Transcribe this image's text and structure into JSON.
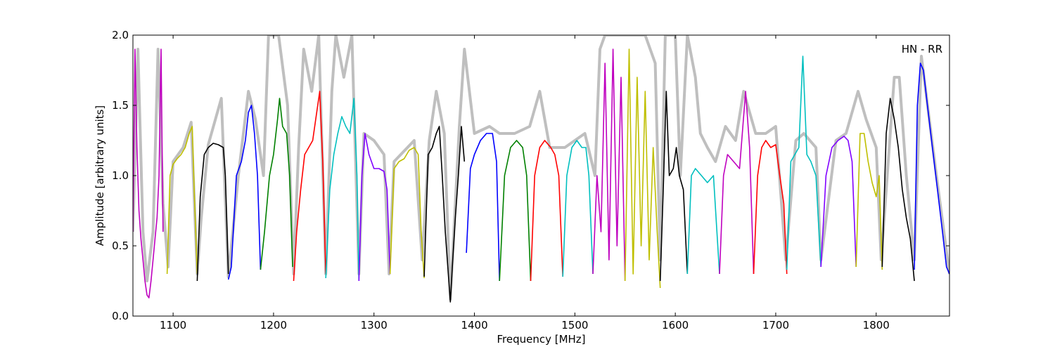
{
  "chart_data": {
    "type": "line",
    "title": "",
    "annotation": "HN - RR",
    "xlabel": "Frequency [MHz]",
    "ylabel": "Amplitude [arbitrary units]",
    "xlim": [
      1060,
      1873
    ],
    "ylim": [
      0.0,
      2.0
    ],
    "x_ticks": [
      1100,
      1200,
      1300,
      1400,
      1500,
      1600,
      1700,
      1800
    ],
    "y_ticks": [
      0.0,
      0.5,
      1.0,
      1.5,
      2.0
    ],
    "y_tick_labels": [
      "0.0",
      "0.5",
      "1.0",
      "1.5",
      "2.0"
    ],
    "grid": false,
    "legend": "none",
    "background_color": "#bfbfbf",
    "background_envelope": [
      [
        1060,
        0.6
      ],
      [
        1065,
        1.9
      ],
      [
        1070,
        0.6
      ],
      [
        1074,
        0.25
      ],
      [
        1080,
        0.6
      ],
      [
        1085,
        1.9
      ],
      [
        1090,
        0.8
      ],
      [
        1095,
        0.35
      ],
      [
        1100,
        1.1
      ],
      [
        1110,
        1.2
      ],
      [
        1118,
        1.38
      ],
      [
        1124,
        0.3
      ],
      [
        1128,
        0.7
      ],
      [
        1135,
        1.22
      ],
      [
        1148,
        1.55
      ],
      [
        1155,
        0.28
      ],
      [
        1165,
        1.0
      ],
      [
        1175,
        1.6
      ],
      [
        1182,
        1.4
      ],
      [
        1190,
        1.0
      ],
      [
        1195,
        2.0
      ],
      [
        1205,
        2.0
      ],
      [
        1214,
        1.5
      ],
      [
        1220,
        0.3
      ],
      [
        1225,
        1.2
      ],
      [
        1230,
        1.9
      ],
      [
        1238,
        1.6
      ],
      [
        1245,
        2.0
      ],
      [
        1252,
        0.3
      ],
      [
        1258,
        1.6
      ],
      [
        1262,
        2.0
      ],
      [
        1270,
        1.7
      ],
      [
        1278,
        2.0
      ],
      [
        1285,
        0.3
      ],
      [
        1290,
        1.3
      ],
      [
        1300,
        1.25
      ],
      [
        1310,
        1.15
      ],
      [
        1315,
        0.3
      ],
      [
        1320,
        1.1
      ],
      [
        1340,
        1.25
      ],
      [
        1348,
        0.4
      ],
      [
        1355,
        1.25
      ],
      [
        1362,
        1.6
      ],
      [
        1370,
        1.3
      ],
      [
        1376,
        0.12
      ],
      [
        1385,
        1.35
      ],
      [
        1390,
        1.9
      ],
      [
        1400,
        1.3
      ],
      [
        1415,
        1.35
      ],
      [
        1425,
        1.3
      ],
      [
        1440,
        1.3
      ],
      [
        1455,
        1.35
      ],
      [
        1465,
        1.6
      ],
      [
        1475,
        1.2
      ],
      [
        1490,
        1.2
      ],
      [
        1500,
        1.25
      ],
      [
        1510,
        1.3
      ],
      [
        1520,
        1.0
      ],
      [
        1525,
        1.9
      ],
      [
        1530,
        2.0
      ],
      [
        1540,
        2.0
      ],
      [
        1550,
        2.0
      ],
      [
        1560,
        2.0
      ],
      [
        1570,
        2.0
      ],
      [
        1580,
        1.8
      ],
      [
        1585,
        0.4
      ],
      [
        1590,
        2.0
      ],
      [
        1600,
        2.0
      ],
      [
        1605,
        1.0
      ],
      [
        1612,
        2.0
      ],
      [
        1620,
        1.7
      ],
      [
        1625,
        1.3
      ],
      [
        1632,
        1.2
      ],
      [
        1640,
        1.1
      ],
      [
        1650,
        1.35
      ],
      [
        1660,
        1.25
      ],
      [
        1668,
        1.6
      ],
      [
        1680,
        1.3
      ],
      [
        1690,
        1.3
      ],
      [
        1700,
        1.35
      ],
      [
        1710,
        0.4
      ],
      [
        1720,
        1.25
      ],
      [
        1728,
        1.3
      ],
      [
        1740,
        1.2
      ],
      [
        1745,
        0.4
      ],
      [
        1760,
        1.25
      ],
      [
        1770,
        1.3
      ],
      [
        1782,
        1.6
      ],
      [
        1790,
        1.4
      ],
      [
        1800,
        1.2
      ],
      [
        1805,
        0.4
      ],
      [
        1818,
        1.7
      ],
      [
        1823,
        1.7
      ],
      [
        1830,
        1.0
      ],
      [
        1838,
        0.4
      ],
      [
        1845,
        1.85
      ],
      [
        1860,
        1.0
      ],
      [
        1873,
        0.3
      ]
    ],
    "series": [
      {
        "color": "#bf00bf",
        "x": [
          1060,
          1062,
          1064,
          1066,
          1068,
          1070,
          1072,
          1074,
          1076,
          1078,
          1080,
          1082,
          1084,
          1086,
          1088,
          1090
        ],
        "y": [
          0.6,
          1.9,
          1.2,
          0.75,
          0.55,
          0.4,
          0.25,
          0.15,
          0.13,
          0.25,
          0.4,
          0.55,
          0.7,
          1.0,
          1.9,
          0.6
        ]
      },
      {
        "color": "#bfbf00",
        "x": [
          1094,
          1097,
          1100,
          1104,
          1108,
          1112,
          1116,
          1119,
          1121,
          1124
        ],
        "y": [
          0.3,
          1.0,
          1.08,
          1.12,
          1.15,
          1.2,
          1.3,
          1.35,
          0.9,
          0.3
        ]
      },
      {
        "color": "#000000",
        "x": [
          1124,
          1127,
          1131,
          1135,
          1140,
          1145,
          1150,
          1152,
          1155
        ],
        "y": [
          0.25,
          0.85,
          1.15,
          1.2,
          1.23,
          1.22,
          1.2,
          1.0,
          0.3
        ]
      },
      {
        "color": "#0000ff",
        "x": [
          1155,
          1158,
          1163,
          1168,
          1172,
          1175,
          1178,
          1181,
          1184,
          1187
        ],
        "y": [
          0.26,
          0.35,
          1.0,
          1.1,
          1.25,
          1.45,
          1.5,
          1.3,
          1.0,
          0.33
        ]
      },
      {
        "color": "#008000",
        "x": [
          1187,
          1191,
          1196,
          1200,
          1204,
          1206,
          1209,
          1213,
          1216,
          1219
        ],
        "y": [
          0.33,
          0.6,
          1.0,
          1.15,
          1.4,
          1.55,
          1.35,
          1.3,
          1.0,
          0.35
        ]
      },
      {
        "color": "#ff0000",
        "x": [
          1220,
          1223,
          1227,
          1231,
          1235,
          1239,
          1243,
          1246,
          1249,
          1252
        ],
        "y": [
          0.25,
          0.6,
          0.9,
          1.15,
          1.2,
          1.25,
          1.45,
          1.6,
          1.1,
          0.3
        ]
      },
      {
        "color": "#00bfbf",
        "x": [
          1252,
          1256,
          1260,
          1264,
          1268,
          1272,
          1276,
          1280,
          1283,
          1285
        ],
        "y": [
          0.27,
          0.9,
          1.15,
          1.3,
          1.42,
          1.35,
          1.3,
          1.55,
          1.0,
          0.25
        ]
      },
      {
        "color": "#8000ff",
        "x": [
          1285,
          1288,
          1291,
          1295,
          1300,
          1305,
          1310,
          1313,
          1316
        ],
        "y": [
          0.25,
          1.0,
          1.3,
          1.15,
          1.05,
          1.05,
          1.03,
          0.9,
          0.3
        ]
      },
      {
        "color": "#bfbf00",
        "x": [
          1316,
          1320,
          1325,
          1330,
          1335,
          1340,
          1344,
          1347,
          1350
        ],
        "y": [
          0.3,
          1.05,
          1.1,
          1.12,
          1.18,
          1.2,
          1.15,
          0.6,
          0.27
        ]
      },
      {
        "color": "#000000",
        "x": [
          1350,
          1354,
          1358,
          1362,
          1365,
          1368,
          1371,
          1374,
          1376,
          1378,
          1381,
          1384,
          1387,
          1390
        ],
        "y": [
          0.28,
          1.15,
          1.2,
          1.3,
          1.35,
          1.0,
          0.6,
          0.3,
          0.1,
          0.35,
          0.7,
          1.0,
          1.35,
          1.1
        ]
      },
      {
        "color": "#0000ff",
        "x": [
          1392,
          1396,
          1400,
          1406,
          1412,
          1418,
          1422,
          1425
        ],
        "y": [
          0.45,
          1.05,
          1.15,
          1.25,
          1.3,
          1.3,
          1.1,
          0.25
        ]
      },
      {
        "color": "#008000",
        "x": [
          1425,
          1430,
          1436,
          1442,
          1448,
          1452,
          1456
        ],
        "y": [
          0.25,
          1.0,
          1.2,
          1.25,
          1.2,
          1.0,
          0.25
        ]
      },
      {
        "color": "#ff0000",
        "x": [
          1456,
          1460,
          1465,
          1470,
          1476,
          1480,
          1484,
          1488
        ],
        "y": [
          0.25,
          1.0,
          1.2,
          1.25,
          1.2,
          1.15,
          1.0,
          0.28
        ]
      },
      {
        "color": "#00bfbf",
        "x": [
          1488,
          1492,
          1497,
          1502,
          1507,
          1511,
          1514,
          1518
        ],
        "y": [
          0.28,
          1.0,
          1.2,
          1.25,
          1.2,
          1.2,
          1.0,
          0.3
        ]
      },
      {
        "color": "#bf00bf",
        "x": [
          1518,
          1522,
          1526,
          1530,
          1534,
          1538,
          1542,
          1546,
          1550
        ],
        "y": [
          0.3,
          1.0,
          0.6,
          1.8,
          0.4,
          1.9,
          0.5,
          1.7,
          0.25
        ]
      },
      {
        "color": "#bfbf00",
        "x": [
          1550,
          1554,
          1558,
          1562,
          1566,
          1570,
          1574,
          1578,
          1582,
          1585
        ],
        "y": [
          0.25,
          1.9,
          0.3,
          1.7,
          0.5,
          1.6,
          0.4,
          1.2,
          0.6,
          0.2
        ]
      },
      {
        "color": "#000000",
        "x": [
          1585,
          1588,
          1591,
          1594,
          1598,
          1601,
          1604,
          1608,
          1612
        ],
        "y": [
          0.25,
          0.9,
          1.6,
          1.0,
          1.05,
          1.2,
          1.0,
          0.9,
          0.3
        ]
      },
      {
        "color": "#00bfbf",
        "x": [
          1612,
          1616,
          1620,
          1626,
          1632,
          1638,
          1644
        ],
        "y": [
          0.3,
          1.0,
          1.05,
          1.0,
          0.95,
          1.0,
          0.3
        ]
      },
      {
        "color": "#bf00bf",
        "x": [
          1644,
          1648,
          1652,
          1658,
          1664,
          1670,
          1674,
          1678
        ],
        "y": [
          0.3,
          1.0,
          1.15,
          1.1,
          1.05,
          1.6,
          1.2,
          0.3
        ]
      },
      {
        "color": "#ff0000",
        "x": [
          1678,
          1682,
          1686,
          1690,
          1695,
          1700,
          1704,
          1708,
          1711
        ],
        "y": [
          0.3,
          1.0,
          1.2,
          1.25,
          1.2,
          1.22,
          1.0,
          0.8,
          0.3
        ]
      },
      {
        "color": "#00bfbf",
        "x": [
          1711,
          1715,
          1719,
          1723,
          1727,
          1731,
          1735,
          1740,
          1745
        ],
        "y": [
          0.33,
          1.1,
          1.15,
          1.2,
          1.85,
          1.15,
          1.1,
          1.0,
          0.35
        ]
      },
      {
        "color": "#8000ff",
        "x": [
          1745,
          1750,
          1756,
          1762,
          1768,
          1772,
          1776,
          1780
        ],
        "y": [
          0.35,
          1.0,
          1.2,
          1.25,
          1.28,
          1.25,
          1.1,
          0.35
        ]
      },
      {
        "color": "#bfbf00",
        "x": [
          1780,
          1784,
          1788,
          1792,
          1796,
          1800,
          1803,
          1806
        ],
        "y": [
          0.35,
          1.3,
          1.3,
          1.1,
          0.95,
          0.85,
          1.0,
          0.33
        ]
      },
      {
        "color": "#000000",
        "x": [
          1806,
          1810,
          1814,
          1818,
          1822,
          1826,
          1830,
          1834,
          1838
        ],
        "y": [
          0.35,
          1.3,
          1.55,
          1.4,
          1.2,
          0.9,
          0.7,
          0.55,
          0.25
        ]
      },
      {
        "color": "#0000ff",
        "x": [
          1838,
          1841,
          1844,
          1847,
          1851,
          1856,
          1861,
          1866,
          1870,
          1873
        ],
        "y": [
          0.33,
          1.5,
          1.8,
          1.75,
          1.5,
          1.2,
          0.9,
          0.6,
          0.35,
          0.3
        ]
      }
    ]
  }
}
